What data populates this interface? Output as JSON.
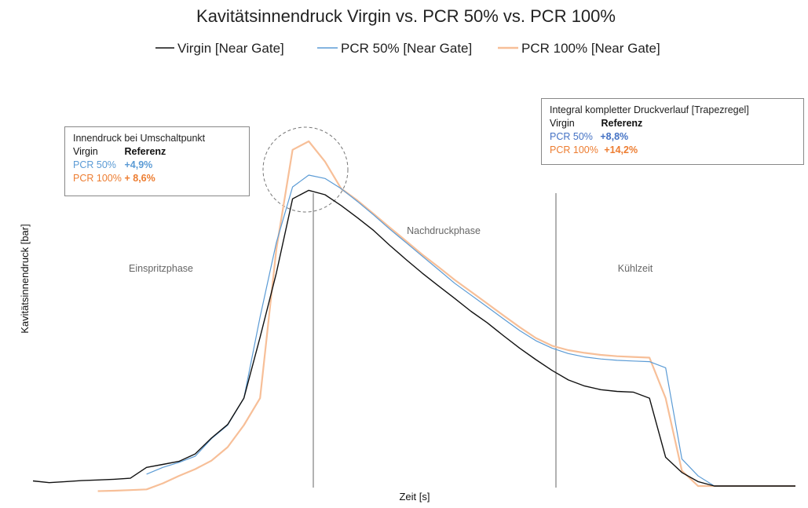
{
  "chart_data": {
    "type": "line",
    "title": "Kavitätsinnendruck Virgin vs. PCR 50% vs. PCR 100%",
    "xlabel": "Zeit [s]",
    "ylabel": "Kavitätsinnendruck [bar]",
    "grid": false,
    "legend_position": "top",
    "colors": {
      "virgin": "#111111",
      "pcr50": "#5b9bd5",
      "pcr100": "#f7bf98"
    },
    "series": [
      {
        "name": "Virgin [Near Gate]",
        "color": "#111111",
        "x": [
          0,
          1,
          2,
          3,
          4,
          5,
          6,
          7,
          8,
          9,
          10,
          11,
          12,
          13,
          14,
          15,
          16,
          17,
          18,
          19,
          20,
          21,
          22,
          23,
          24,
          25,
          26,
          27,
          28,
          29,
          30,
          31,
          32,
          33,
          34,
          35,
          36,
          37,
          38,
          39,
          40,
          41,
          42,
          43,
          44,
          45,
          46,
          47
        ],
        "y": [
          1.5,
          1.0,
          1.3,
          1.6,
          1.8,
          2.0,
          2.3,
          5.5,
          6.4,
          7.3,
          9.5,
          14.2,
          18.2,
          26.0,
          44.0,
          63.0,
          85.0,
          87.5,
          86.2,
          83.0,
          79.4,
          75.6,
          71.2,
          67.0,
          63.0,
          59.2,
          55.5,
          51.7,
          48.3,
          44.5,
          40.8,
          37.4,
          34.2,
          31.4,
          29.6,
          28.5,
          28.0,
          27.8,
          26.0,
          8.5,
          4.0,
          1.3,
          0,
          0,
          0,
          0,
          0,
          0
        ]
      },
      {
        "name": "PCR 50% [Near Gate]",
        "color": "#5b9bd5",
        "x": [
          7,
          8,
          9,
          10,
          11,
          12,
          13,
          14,
          15,
          16,
          17,
          18,
          19,
          20,
          21,
          22,
          23,
          24,
          25,
          26,
          27,
          28,
          29,
          30,
          31,
          32,
          33,
          34,
          35,
          36,
          37,
          38,
          39,
          40,
          41,
          42,
          43,
          44,
          45,
          46,
          47
        ],
        "y": [
          3.5,
          5.5,
          7.0,
          8.8,
          14.0,
          18.0,
          26.0,
          50.0,
          72.0,
          88.5,
          92.0,
          91.0,
          88.0,
          84.2,
          80.2,
          76.0,
          72.0,
          68.0,
          64.0,
          60.0,
          56.5,
          53.0,
          49.5,
          46.0,
          43.0,
          40.8,
          39.2,
          38.2,
          37.6,
          37.2,
          37.0,
          36.8,
          35.0,
          8.0,
          3.0,
          0,
          0,
          0,
          0,
          0,
          0
        ]
      },
      {
        "name": "PCR 100% [Near Gate]",
        "color": "#f7bf98",
        "x": [
          4,
          5,
          6,
          7,
          8,
          9,
          10,
          11,
          12,
          13,
          14,
          15,
          16,
          17,
          18,
          19,
          20,
          21,
          22,
          23,
          24,
          25,
          26,
          27,
          28,
          29,
          30,
          31,
          32,
          33,
          34,
          35,
          36,
          37,
          38,
          39,
          40,
          41,
          42,
          43,
          44,
          45,
          46,
          47
        ],
        "y": [
          -1.5,
          -1.4,
          -1.2,
          -1.0,
          0.8,
          3.0,
          5.0,
          7.5,
          11.5,
          18.0,
          26.0,
          70.0,
          99.5,
          102.0,
          96.0,
          88.0,
          84.5,
          80.5,
          76.5,
          72.5,
          68.5,
          64.8,
          61.0,
          57.5,
          54.0,
          50.5,
          47.0,
          43.8,
          41.5,
          40.2,
          39.4,
          38.8,
          38.4,
          38.2,
          38.0,
          26.0,
          4.5,
          0,
          0,
          0,
          0,
          0,
          0,
          0
        ]
      }
    ],
    "annotations": {
      "phases": [
        "Einspritzphase",
        "Nachdruckphase",
        "Kühlzeit"
      ],
      "box_left": {
        "title": "Innendruck bei Umschaltpunkt",
        "rows": [
          {
            "label": "Virgin",
            "value": "Referenz"
          },
          {
            "label": "PCR 50%",
            "value": "+4,9%"
          },
          {
            "label": "PCR 100%",
            "value": "+ 8,6%"
          }
        ]
      },
      "box_right": {
        "title": "Integral kompletter Druckverlauf [Trapezregel]",
        "rows": [
          {
            "label": "Virgin",
            "value": "Referenz"
          },
          {
            "label": "PCR 50%",
            "value": "+8,8%"
          },
          {
            "label": "PCR 100%",
            "value": "+14,2%"
          }
        ]
      }
    }
  }
}
